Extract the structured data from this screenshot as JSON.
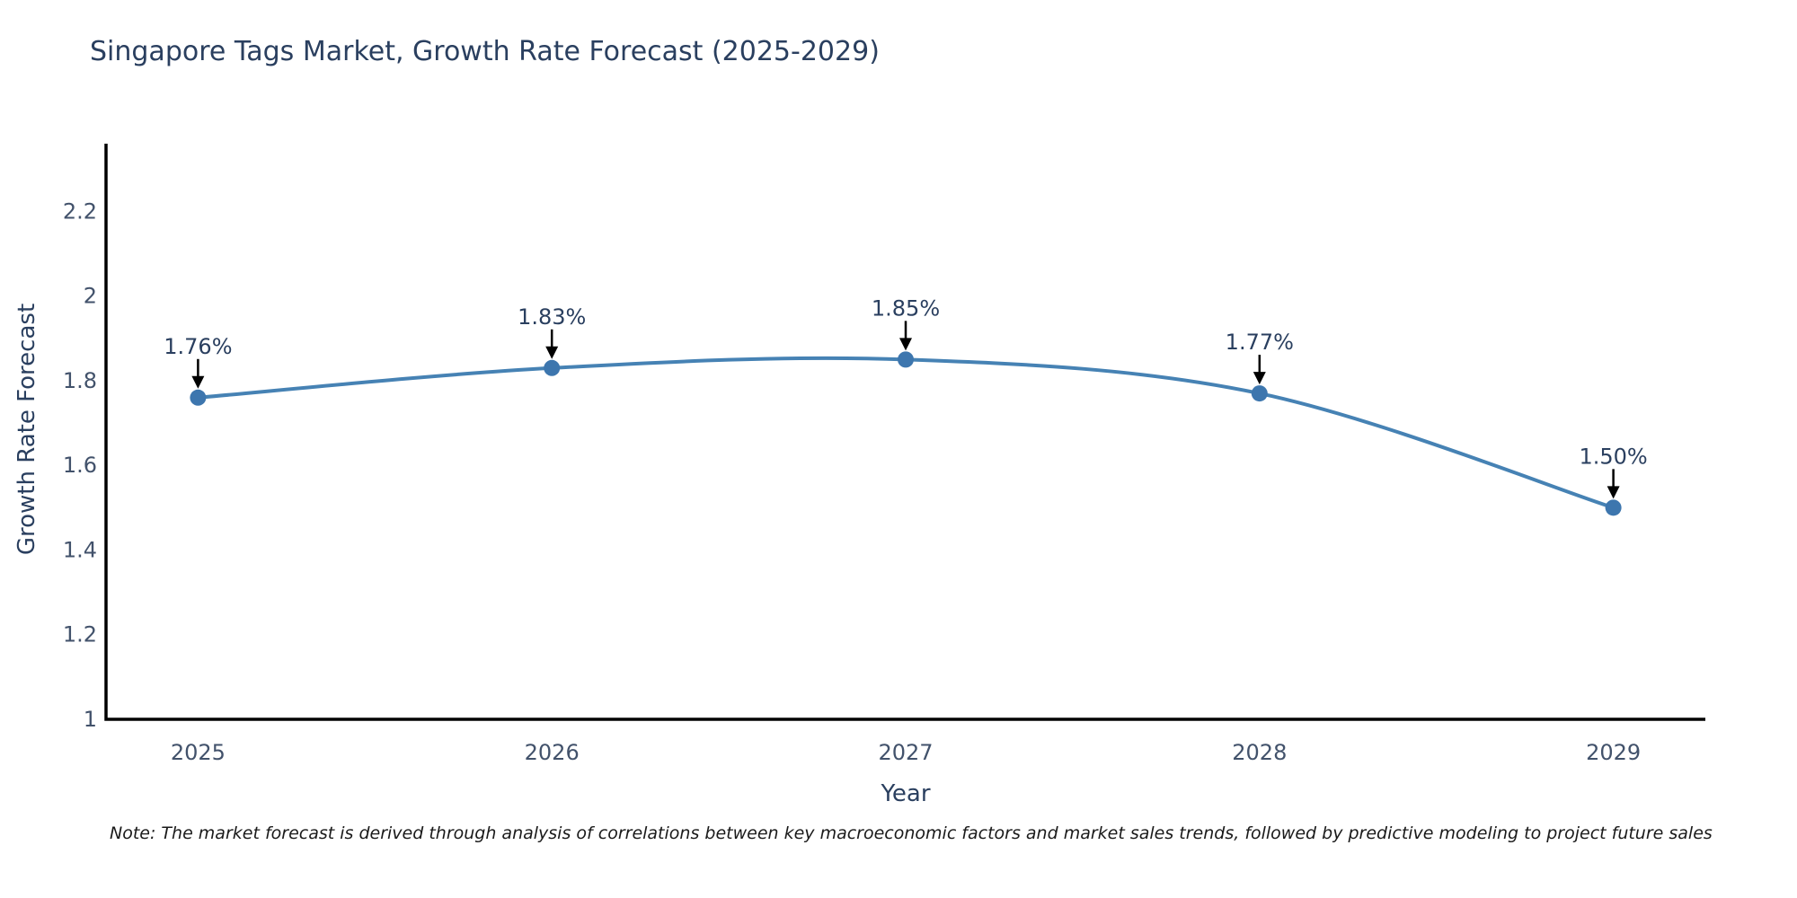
{
  "header": {
    "title": "Singapore Tags Market, Growth Rate Forecast (2025-2029)"
  },
  "footer": {
    "note": "Note: The market forecast is derived through analysis of correlations between key macroeconomic factors and market sales trends, followed by predictive modeling to project future sales"
  },
  "chart_data": {
    "type": "line",
    "title": "Singapore Tags Market, Growth Rate Forecast (2025-2029)",
    "xlabel": "Year",
    "ylabel": "Growth Rate Forecast",
    "x": [
      2025,
      2026,
      2027,
      2028,
      2029
    ],
    "series": [
      {
        "name": "Growth Rate Forecast",
        "values": [
          1.76,
          1.83,
          1.85,
          1.77,
          1.5
        ]
      }
    ],
    "point_labels": [
      "1.76%",
      "1.83%",
      "1.85%",
      "1.77%",
      "1.50%"
    ],
    "xtick_labels": [
      "2025",
      "2026",
      "2027",
      "2028",
      "2029"
    ],
    "ytick_labels": [
      "1",
      "1.2",
      "1.4",
      "1.6",
      "1.8",
      "2",
      "2.2"
    ],
    "ytick_values": [
      1,
      1.2,
      1.4,
      1.6,
      1.8,
      2,
      2.2
    ],
    "xlim": [
      2024.74,
      2029.26
    ],
    "ylim": [
      1,
      2.36
    ],
    "grid": false,
    "legend_position": "none",
    "line_shape": "spline",
    "colors": {
      "line": "#4682b4",
      "marker": "#3d76ae",
      "axis": "#000000",
      "tick_text": "#42526b",
      "title_text": "#2a3f5f",
      "annotation_text": "#2a3f5f",
      "arrow": "#000000",
      "background": "#ffffff"
    }
  }
}
